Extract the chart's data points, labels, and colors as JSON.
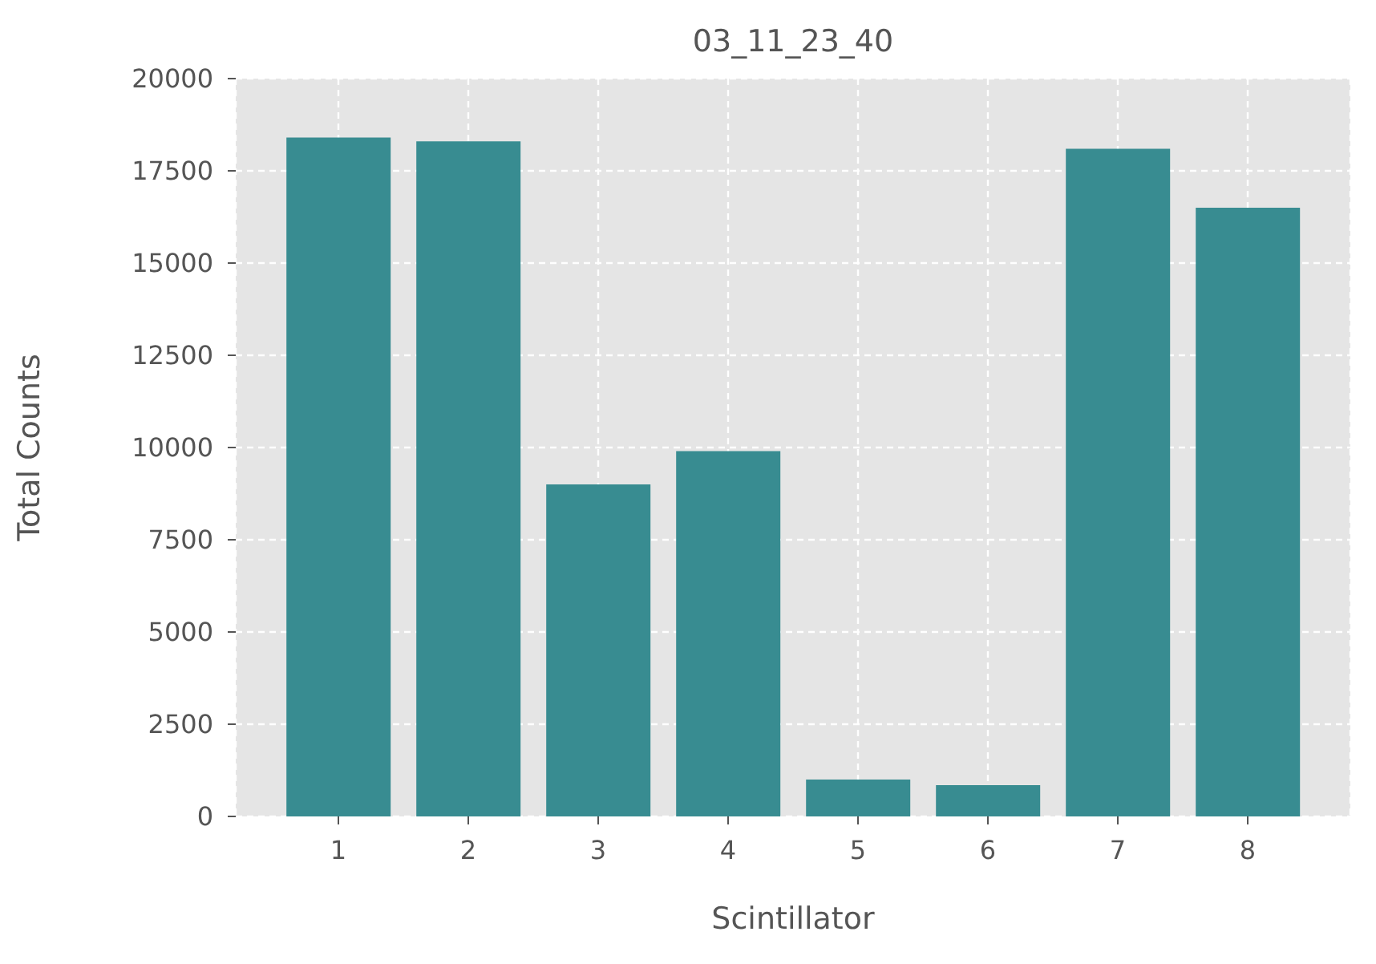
{
  "chart_data": {
    "type": "bar",
    "title": "03_11_23_40",
    "xlabel": "Scintillator",
    "ylabel": "Total Counts",
    "categories": [
      "1",
      "2",
      "3",
      "4",
      "5",
      "6",
      "7",
      "8"
    ],
    "values": [
      18400,
      18300,
      9000,
      9900,
      1000,
      850,
      18100,
      16500
    ],
    "color": "#388c91",
    "ylim": [
      0,
      20000
    ],
    "yticks": [
      0,
      2500,
      5000,
      7500,
      10000,
      12500,
      15000,
      17500,
      20000
    ],
    "grid": true
  }
}
